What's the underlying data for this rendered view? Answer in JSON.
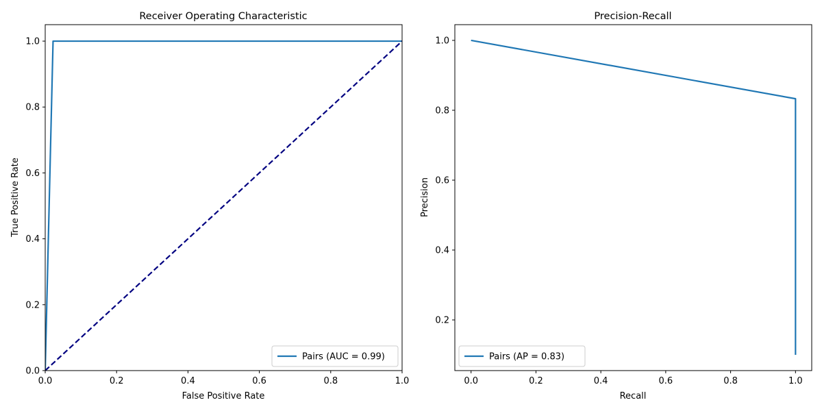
{
  "chart_data": [
    {
      "type": "line",
      "title": "Receiver Operating Characteristic",
      "xlabel": "False Positive Rate",
      "ylabel": "True Positive Rate",
      "xlim": [
        0.0,
        1.0
      ],
      "ylim": [
        0.0,
        1.05
      ],
      "xticks": [
        0.0,
        0.2,
        0.4,
        0.6,
        0.8,
        1.0
      ],
      "yticks": [
        0.0,
        0.2,
        0.4,
        0.6,
        0.8,
        1.0
      ],
      "xtick_labels": [
        "0.0",
        "0.2",
        "0.4",
        "0.6",
        "0.8",
        "1.0"
      ],
      "ytick_labels": [
        "0.0",
        "0.2",
        "0.4",
        "0.6",
        "0.8",
        "1.0"
      ],
      "grid": false,
      "legend_position": "lower-right",
      "series": [
        {
          "name": "Pairs (AUC = 0.99)",
          "color": "#1f77b4",
          "dashed": false,
          "in_legend": true,
          "x": [
            0.0,
            0.0,
            0.022,
            0.022,
            1.0
          ],
          "y": [
            0.0,
            0.0,
            1.0,
            1.0,
            1.0
          ]
        },
        {
          "color": "#000080",
          "dashed": true,
          "in_legend": false,
          "x": [
            0.0,
            1.0
          ],
          "y": [
            0.0,
            1.0
          ]
        }
      ]
    },
    {
      "type": "line",
      "title": "Precision-Recall",
      "xlabel": "Recall",
      "ylabel": "Precision",
      "xlim": [
        -0.05,
        1.05
      ],
      "ylim": [
        0.055,
        1.045
      ],
      "xticks": [
        0.0,
        0.2,
        0.4,
        0.6,
        0.8,
        1.0
      ],
      "yticks": [
        0.2,
        0.4,
        0.6,
        0.8,
        1.0
      ],
      "xtick_labels": [
        "0.0",
        "0.2",
        "0.4",
        "0.6",
        "0.8",
        "1.0"
      ],
      "ytick_labels": [
        "0.2",
        "0.4",
        "0.6",
        "0.8",
        "1.0"
      ],
      "grid": false,
      "legend_position": "lower-left",
      "series": [
        {
          "name": "Pairs (AP = 0.83)",
          "color": "#1f77b4",
          "dashed": false,
          "in_legend": true,
          "x": [
            0.0,
            1.0,
            1.0
          ],
          "y": [
            1.0,
            0.833,
            0.1
          ]
        }
      ]
    }
  ]
}
